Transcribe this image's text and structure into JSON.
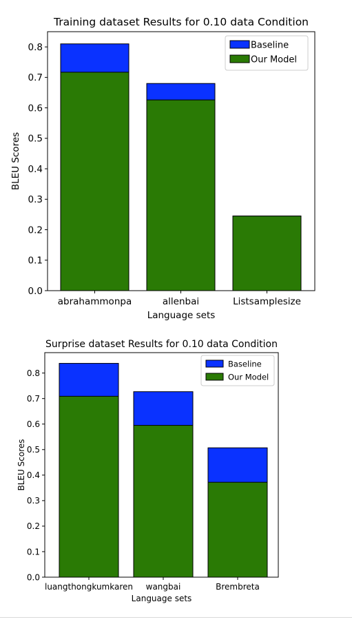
{
  "colors": {
    "baseline": "#0a32ff",
    "our_model": "#2a7a05",
    "edge": "#000000"
  },
  "chart_data": [
    {
      "type": "bar",
      "title": "Training dataset Results for 0.10 data Condition",
      "xlabel": "Language sets",
      "ylabel": "BLEU Scores",
      "categories": [
        "abrahammonpa",
        "allenbai",
        "Listsamplesize"
      ],
      "series": [
        {
          "name": "Baseline",
          "values": [
            0.81,
            0.68,
            0.245
          ]
        },
        {
          "name": "Our Model",
          "values": [
            0.717,
            0.626,
            0.245
          ]
        }
      ],
      "y_ticks": [
        "0.0",
        "0.1",
        "0.2",
        "0.3",
        "0.4",
        "0.5",
        "0.6",
        "0.7",
        "0.8"
      ],
      "ylim": [
        0,
        0.85
      ],
      "legend": "top-right",
      "grid": false
    },
    {
      "type": "bar",
      "title": "Surprise dataset Results for 0.10 data Condition",
      "xlabel": "Language sets",
      "ylabel": "BLEU Scores",
      "categories": [
        "luangthongkumkaren",
        "wangbai",
        "Brembreta"
      ],
      "series": [
        {
          "name": "Baseline",
          "values": [
            0.838,
            0.727,
            0.507
          ]
        },
        {
          "name": "Our Model",
          "values": [
            0.709,
            0.595,
            0.372
          ]
        }
      ],
      "y_ticks": [
        "0.0",
        "0.1",
        "0.2",
        "0.3",
        "0.4",
        "0.5",
        "0.6",
        "0.7",
        "0.8"
      ],
      "ylim": [
        0,
        0.88
      ],
      "legend": "top-right",
      "grid": false
    }
  ]
}
